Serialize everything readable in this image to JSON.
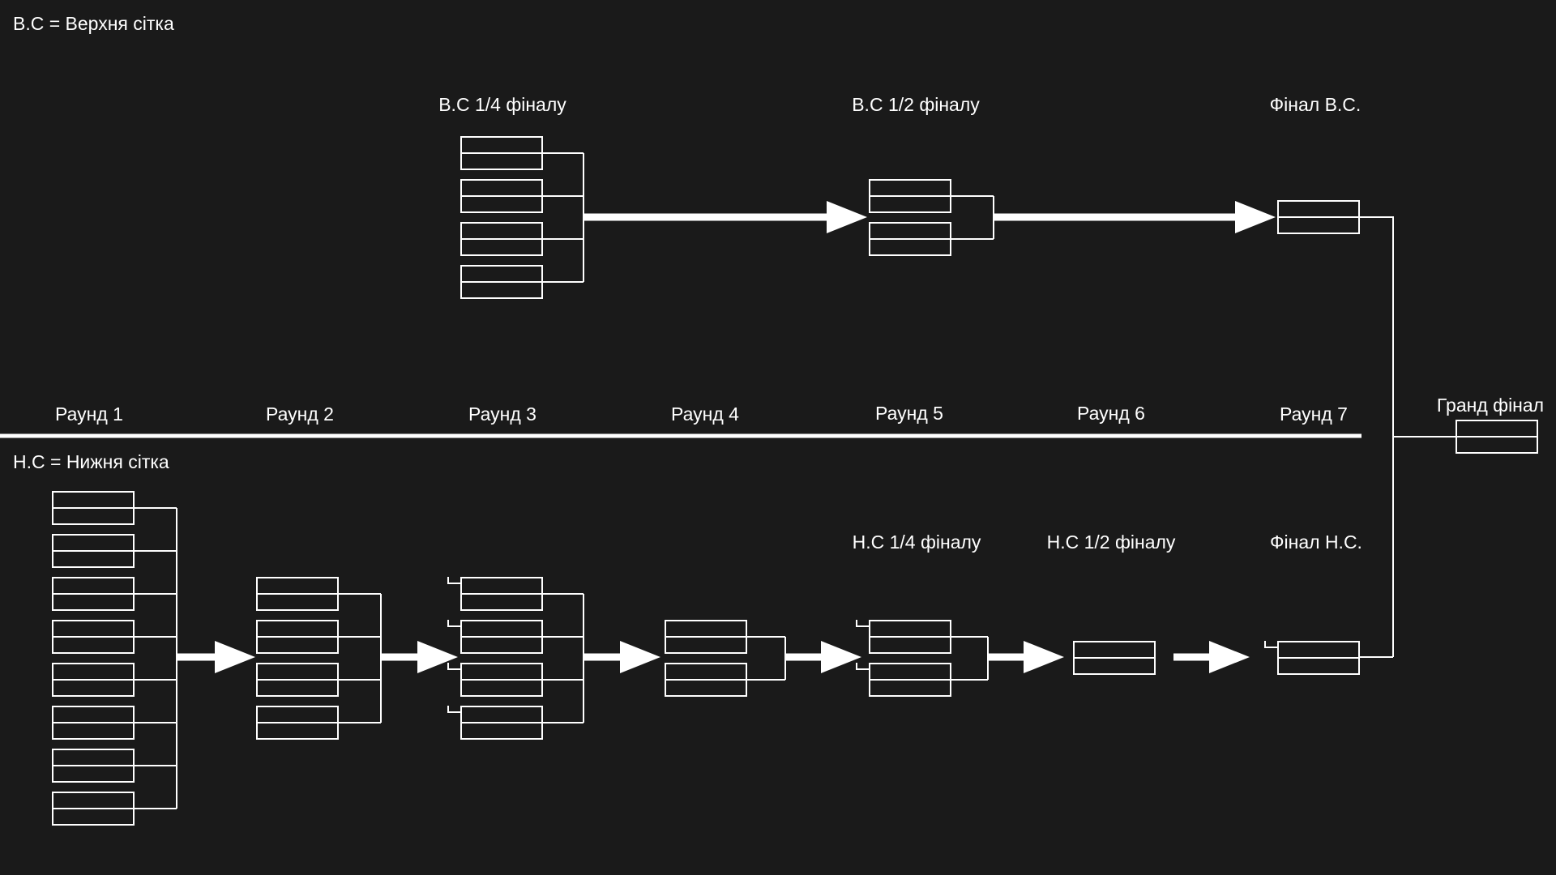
{
  "legend": {
    "upper": "В.С  = Верхня сітка",
    "lower": "Н.С  = Нижня сітка"
  },
  "upper_headers": {
    "quarter": "В.С  1/4 фіналу",
    "semi": "В.С  1/2 фіналу",
    "final": "Фінал В.С."
  },
  "lower_headers": {
    "quarter": "Н.С  1/4 фіналу",
    "semi": "Н.С  1/2 фіналу",
    "final": "Фінал Н.С."
  },
  "rounds": [
    "Раунд 1",
    "Раунд 2",
    "Раунд 3",
    "Раунд 4",
    "Раунд 5",
    "Раунд 6",
    "Раунд 7"
  ],
  "grand_final": "Гранд фінал",
  "colors": {
    "background": "#1a1a1a",
    "foreground": "#ffffff"
  }
}
